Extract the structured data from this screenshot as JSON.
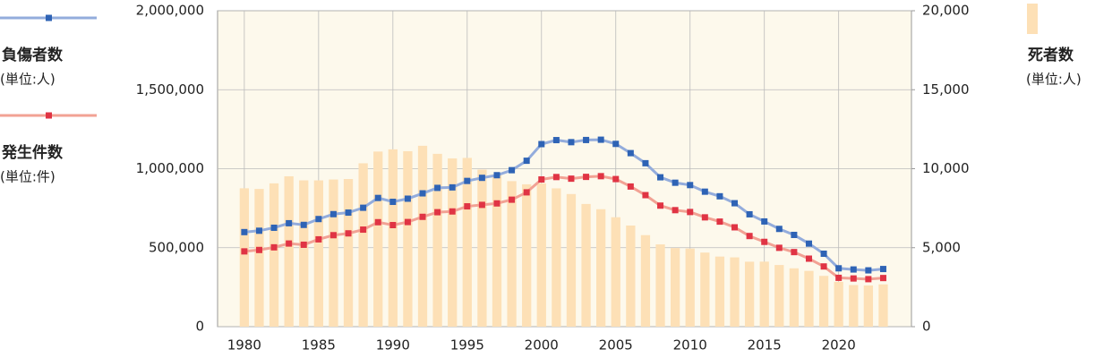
{
  "chart_data": {
    "type": "combo",
    "x": [
      1980,
      1981,
      1982,
      1983,
      1984,
      1985,
      1986,
      1987,
      1988,
      1989,
      1990,
      1991,
      1992,
      1993,
      1994,
      1995,
      1996,
      1997,
      1998,
      1999,
      2000,
      2001,
      2002,
      2003,
      2004,
      2005,
      2006,
      2007,
      2008,
      2009,
      2010,
      2011,
      2012,
      2013,
      2014,
      2015,
      2016,
      2017,
      2018,
      2019,
      2020,
      2021,
      2022,
      2023
    ],
    "xlim": [
      1978.2,
      2024.9
    ],
    "xticks": [
      1980,
      1985,
      1990,
      1995,
      2000,
      2005,
      2010,
      2015,
      2020
    ],
    "ylim": [
      0,
      2000000
    ],
    "yticks": [
      0,
      {
        "value": 500000,
        "label": "500,000"
      },
      {
        "value": 1000000,
        "label": "1,000,000"
      },
      {
        "value": 1500000,
        "label": "1,500,000"
      },
      {
        "value": 2000000,
        "label": "2,000,000"
      }
    ],
    "y2lim": [
      0,
      20000
    ],
    "y2ticks": [
      0,
      {
        "value": 5000,
        "label": "5,000"
      },
      {
        "value": 10000,
        "label": "10,000"
      },
      {
        "value": 15000,
        "label": "15,000"
      },
      {
        "value": 20000,
        "label": "20,000"
      }
    ],
    "grid": true,
    "background": "#fdf9ec",
    "series": [
      {
        "name": "負傷者数",
        "unit": "(単位:人)",
        "kind": "line",
        "color": "#2e63b5",
        "line_color": "#93acdc",
        "values": [
          598719,
          607346,
          626192,
          654822,
          644321,
          681346,
          712330,
          722179,
          752845,
          814832,
          790295,
          810245,
          844003,
          878633,
          881723,
          922677,
          942204,
          958925,
          990676,
          1050399,
          1155697,
          1181039,
          1168029,
          1181681,
          1183617,
          1157113,
          1098564,
          1034652,
          945703,
          911215,
          896297,
          854613,
          825392,
          781492,
          711374,
          666023,
          618853,
          580850,
          525846,
          461775,
          369476,
          362131,
          356601,
          365027
        ]
      },
      {
        "name": "発生件数",
        "unit": "(単位:件)",
        "kind": "line",
        "color": "#e03444",
        "line_color": "#f2a294",
        "values": [
          476677,
          485578,
          502261,
          526362,
          518642,
          552788,
          579190,
          590723,
          614481,
          661363,
          643097,
          662392,
          695346,
          724675,
          729461,
          761794,
          771085,
          780401,
          803882,
          850371,
          931950,
          947253,
          936950,
          948281,
          952720,
          934346,
          887267,
          832704,
          766394,
          737637,
          725924,
          692084,
          665157,
          629033,
          573842,
          536899,
          499201,
          472165,
          430601,
          381237,
          309178,
          305196,
          300839,
          307930
        ]
      },
      {
        "name": "死者数",
        "unit": "(単位:人)",
        "kind": "bar",
        "axis": "y2",
        "color": "#fde0b6",
        "values": [
          8760,
          8719,
          9073,
          9520,
          9262,
          9261,
          9317,
          9347,
          10344,
          11086,
          11227,
          11109,
          11452,
          10942,
          10653,
          10684,
          9943,
          9642,
          9214,
          9012,
          9073,
          8757,
          8396,
          7768,
          7436,
          6927,
          6403,
          5796,
          5209,
          4979,
          4948,
          4691,
          4438,
          4388,
          4113,
          4117,
          3904,
          3694,
          3532,
          3215,
          2839,
          2636,
          2610,
          2678
        ]
      }
    ]
  }
}
